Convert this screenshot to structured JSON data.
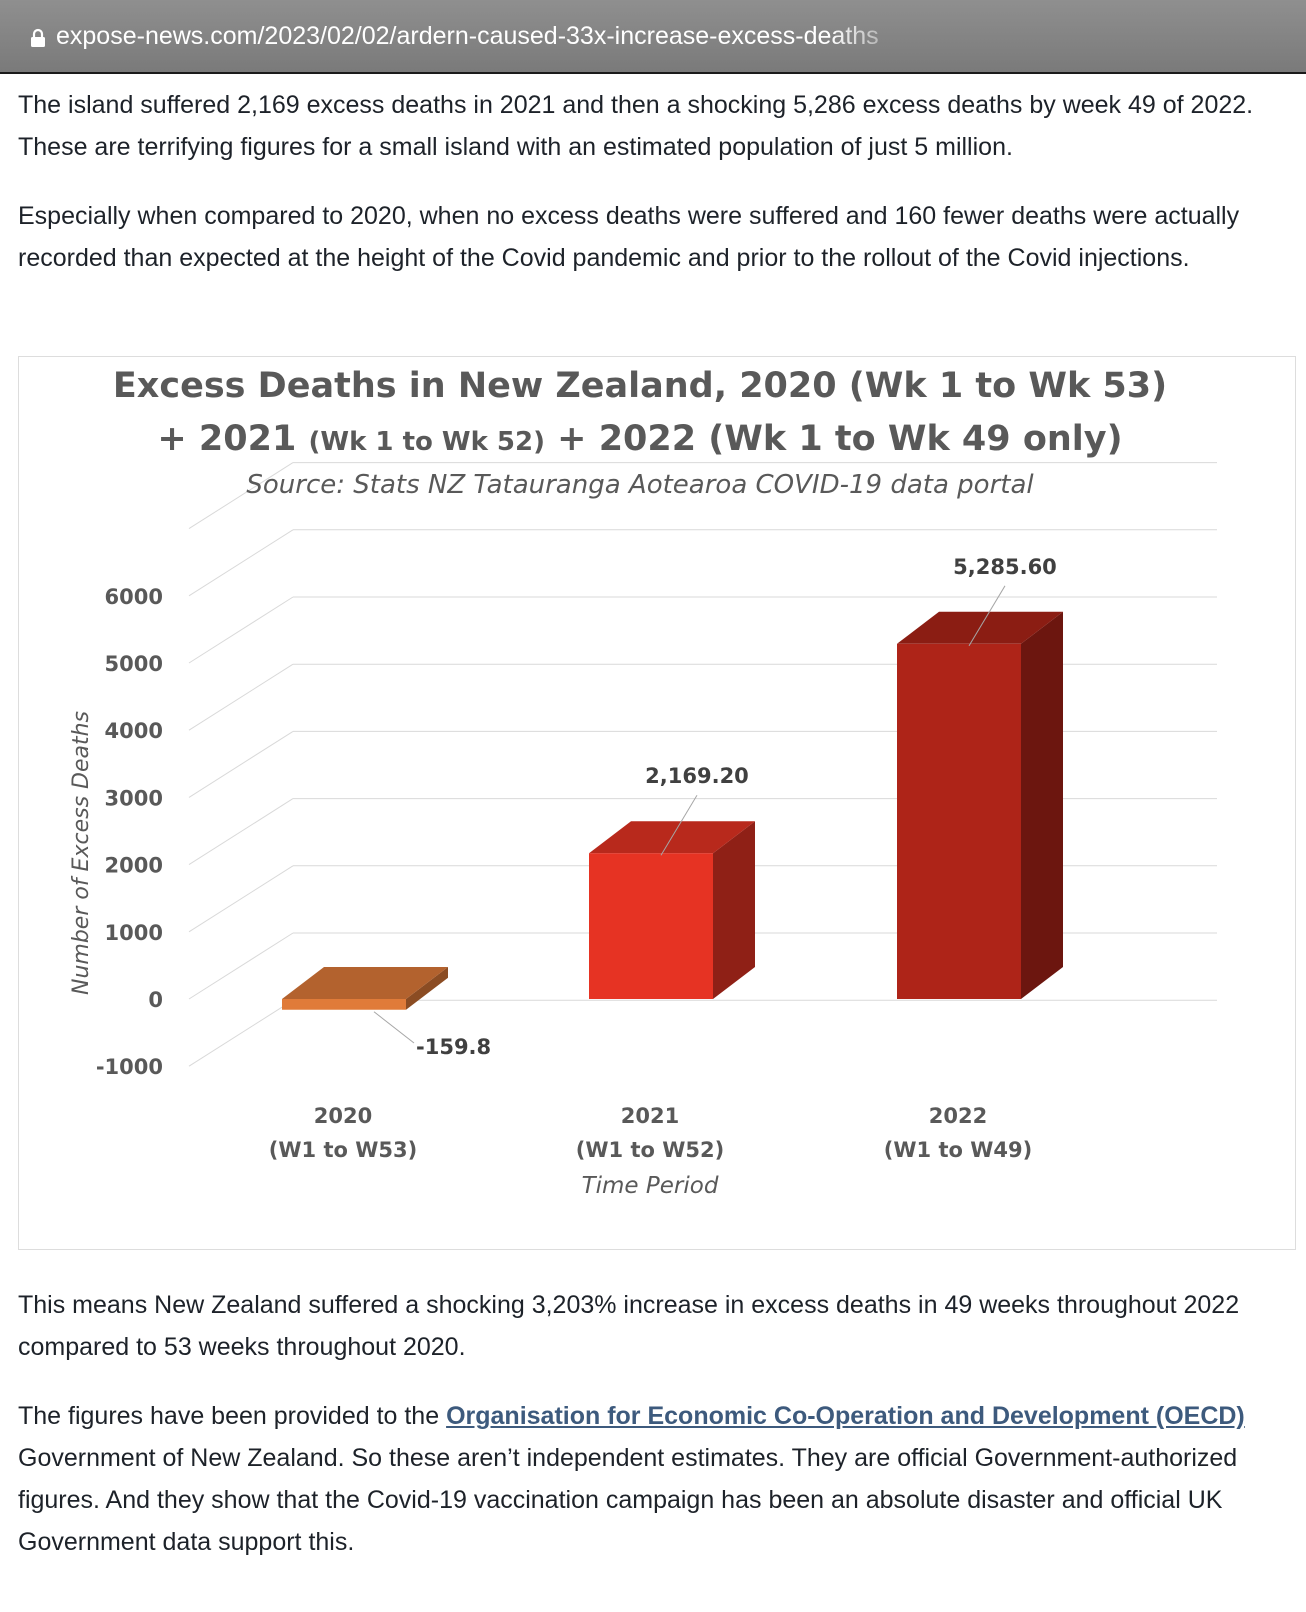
{
  "browser": {
    "url": "expose-news.com/2023/02/02/ardern-caused-33x-increase-excess-deaths"
  },
  "article": {
    "paragraph_1": "The island suffered 2,169 excess deaths in 2021 and then a shocking 5,286 excess deaths by week 49 of 2022. These are terrifying figures for a small island with an estimated population of just 5 million.",
    "paragraph_2": "Especially when compared to 2020, when no excess deaths were suffered and 160 fewer deaths were actually recorded than expected at the height of the Covid pandemic and prior to the rollout of the Covid injections.",
    "paragraph_3": "This means New Zealand suffered a shocking 3,203% increase in excess deaths in 49 weeks throughout 2022 compared to 53 weeks throughout 2020.",
    "paragraph_4_before_link": "The figures have been provided to the ",
    "paragraph_4_link": "Organisation for Economic Co-Operation and Development (OECD)",
    "paragraph_4_after_link": " Government of New Zealand. So these aren’t independent estimates. They are official Government-authorized figures. And they show that the Covid-19 vaccination campaign has been an absolute disaster and official UK Government data support this."
  },
  "chart_data": {
    "type": "bar",
    "title_line1": "Excess Deaths in New Zealand, 2020 (Wk 1 to Wk 53)",
    "title_line2_a": "+ 2021 ",
    "title_line2_b": "(Wk 1 to Wk 52)",
    "title_line2_c": " + 2022 (Wk 1 to Wk 49 only)",
    "subtitle": "Source: Stats NZ Tatauranga Aotearoa COVID-19 data portal",
    "ylabel": "Number of Excess Deaths",
    "xlabel": "Time Period",
    "categories": [
      {
        "year": "2020",
        "range": "(W1 to W53)"
      },
      {
        "year": "2021",
        "range": "(W1 to W52)"
      },
      {
        "year": "2022",
        "range": "(W1 to W49)"
      }
    ],
    "values": [
      -159.8,
      2169.2,
      5285.6
    ],
    "data_labels": [
      "-159.8",
      "2,169.20",
      "5,285.60"
    ],
    "yticks": [
      "6000",
      "5000",
      "4000",
      "3000",
      "2000",
      "1000",
      "0",
      "-1000"
    ],
    "ytick_values": [
      6000,
      5000,
      4000,
      3000,
      2000,
      1000,
      0,
      -1000
    ],
    "ylim": [
      -1000,
      6000
    ],
    "grid": true,
    "bar_colors": [
      "#e07b39",
      "#e63323",
      "#ae2418"
    ]
  }
}
